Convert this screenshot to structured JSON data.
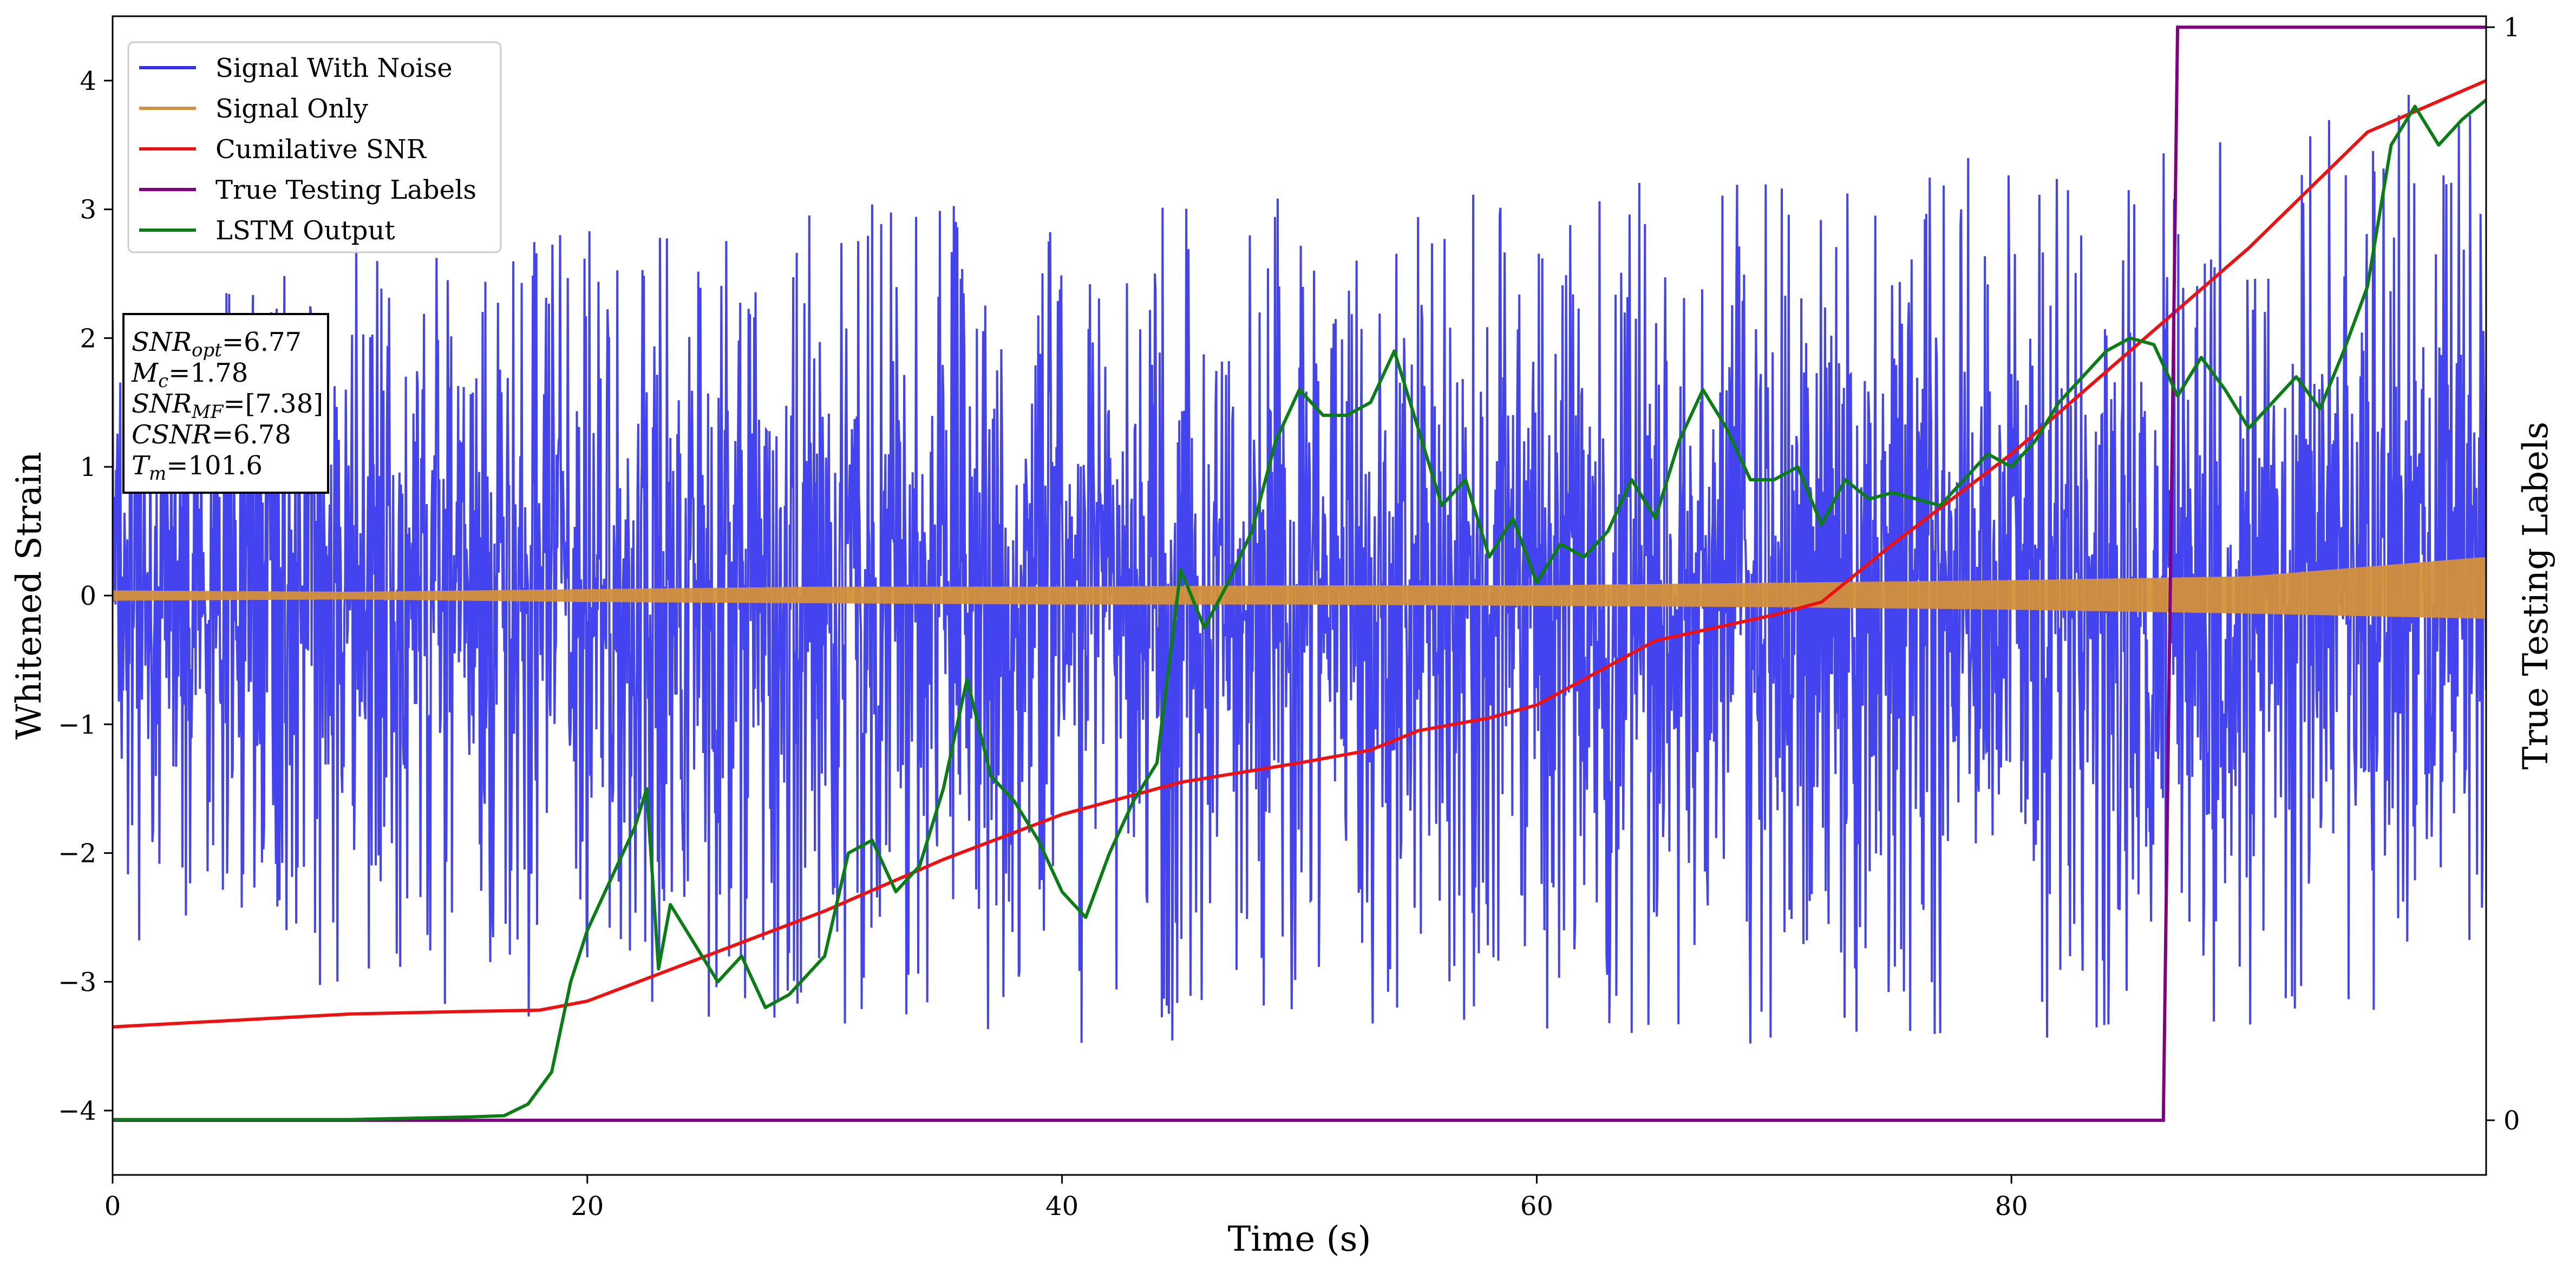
{
  "chart_data": {
    "type": "line",
    "xlabel": "Time (s)",
    "ylabel": "Whitened Strain",
    "y2label": "True Testing Labels",
    "xlim": [
      0,
      100
    ],
    "ylim": [
      -4.5,
      4.5
    ],
    "y2lim": [
      -0.05,
      1.01
    ],
    "xticks": [
      0,
      20,
      40,
      60,
      80
    ],
    "yticks": [
      -4,
      -3,
      -2,
      -1,
      0,
      1,
      2,
      3,
      4
    ],
    "y2ticks": [
      0,
      1
    ],
    "grid": false,
    "legend_position": "top-left",
    "colors": {
      "signal_with_noise": "#3333ee",
      "signal_only": "#d4903a",
      "cumulative_snr": "#ee1111",
      "true_labels": "#800080",
      "lstm_output": "#0a7d14"
    },
    "legend": [
      {
        "key": "signal_with_noise",
        "label": "Signal With Noise"
      },
      {
        "key": "signal_only",
        "label": "Signal Only"
      },
      {
        "key": "cumulative_snr",
        "label": "Cumilative SNR"
      },
      {
        "key": "true_labels",
        "label": "True Testing Labels"
      },
      {
        "key": "lstm_output",
        "label": "LSTM Output"
      }
    ],
    "annotation": [
      {
        "sym": "SNR",
        "sub": "opt",
        "rest": "=6.77"
      },
      {
        "sym": "M",
        "sub": "c",
        "rest": "=1.78"
      },
      {
        "sym": "SNR",
        "sub": "MF",
        "rest": "=[7.38]"
      },
      {
        "sym": "CSNR",
        "sub": "",
        "rest": "=6.78"
      },
      {
        "sym": "T",
        "sub": "m",
        "rest": "=101.6"
      }
    ],
    "series": [
      {
        "key": "signal_with_noise",
        "name": "Signal With Noise",
        "axis": "left",
        "envelope": {
          "x": [
            0,
            10,
            20,
            30,
            40,
            50,
            60,
            70,
            80,
            90,
            100
          ],
          "upper": [
            2.2,
            2.8,
            2.9,
            3.0,
            3.2,
            3.1,
            3.2,
            3.3,
            3.5,
            3.6,
            4.1
          ],
          "lower": [
            -2.7,
            -3.2,
            -3.3,
            -3.3,
            -3.6,
            -3.3,
            -3.4,
            -3.5,
            -3.5,
            -3.4,
            -3.1
          ]
        }
      },
      {
        "key": "signal_only",
        "name": "Signal Only",
        "axis": "left",
        "envelope": {
          "x": [
            0,
            10,
            20,
            30,
            40,
            50,
            60,
            70,
            80,
            90,
            100
          ],
          "upper": [
            0.04,
            0.03,
            0.05,
            0.07,
            0.07,
            0.08,
            0.08,
            0.1,
            0.12,
            0.15,
            0.3
          ],
          "lower": [
            -0.04,
            -0.03,
            -0.05,
            -0.06,
            -0.07,
            -0.07,
            -0.08,
            -0.09,
            -0.11,
            -0.14,
            -0.18
          ]
        }
      },
      {
        "key": "cumulative_snr",
        "name": "Cumilative SNR",
        "axis": "left",
        "x": [
          0,
          5,
          10,
          15,
          18,
          20,
          25,
          30,
          35,
          40,
          45,
          50,
          53,
          55,
          58,
          60,
          65,
          70,
          72,
          75,
          80,
          85,
          90,
          95,
          100
        ],
        "y": [
          -3.35,
          -3.3,
          -3.25,
          -3.23,
          -3.22,
          -3.15,
          -2.8,
          -2.45,
          -2.05,
          -1.7,
          -1.45,
          -1.3,
          -1.2,
          -1.05,
          -0.95,
          -0.85,
          -0.35,
          -0.15,
          -0.05,
          0.4,
          1.1,
          1.9,
          2.7,
          3.6,
          4.0
        ]
      },
      {
        "key": "true_labels",
        "name": "True Testing Labels",
        "axis": "right",
        "x": [
          0,
          86.4,
          87.0,
          100
        ],
        "y": [
          0,
          0,
          1,
          1
        ]
      },
      {
        "key": "lstm_output",
        "name": "LSTM Output",
        "axis": "left",
        "x": [
          0,
          10,
          15,
          16.5,
          17.5,
          18.5,
          19.3,
          20.0,
          21.0,
          22.0,
          22.5,
          23.0,
          23.5,
          24.5,
          25.5,
          26.5,
          27.5,
          28.5,
          30.0,
          31.0,
          32.0,
          33.0,
          34.0,
          35.0,
          36.0,
          37.0,
          38.0,
          39.0,
          40.0,
          41.0,
          42.0,
          43.0,
          44.0,
          45.0,
          46.0,
          47.0,
          48.0,
          49.0,
          50.0,
          51.0,
          52.0,
          53.0,
          54.0,
          55.0,
          56.0,
          57.0,
          58.0,
          59.0,
          60.0,
          61.0,
          62.0,
          63.0,
          64.0,
          65.0,
          66.0,
          67.0,
          68.0,
          69.0,
          70.0,
          71.0,
          72.0,
          73.0,
          74.0,
          75.0,
          76.0,
          77.0,
          78.0,
          79.0,
          80.0,
          81.0,
          82.0,
          83.0,
          84.0,
          85.0,
          86.0,
          87.0,
          88.0,
          89.0,
          90.0,
          91.0,
          92.0,
          93.0,
          94.0,
          95.0,
          96.0,
          97.0,
          98.0,
          99.0,
          100.0
        ],
        "y": [
          -4.07,
          -4.07,
          -4.05,
          -4.04,
          -3.95,
          -3.7,
          -3.0,
          -2.6,
          -2.2,
          -1.8,
          -1.5,
          -2.9,
          -2.4,
          -2.7,
          -3.0,
          -2.8,
          -3.2,
          -3.1,
          -2.8,
          -2.0,
          -1.9,
          -2.3,
          -2.1,
          -1.5,
          -0.65,
          -1.4,
          -1.6,
          -1.9,
          -2.3,
          -2.5,
          -2.0,
          -1.6,
          -1.3,
          0.2,
          -0.25,
          0.1,
          0.5,
          1.2,
          1.6,
          1.4,
          1.4,
          1.5,
          1.9,
          1.3,
          0.7,
          0.9,
          0.3,
          0.6,
          0.1,
          0.4,
          0.3,
          0.5,
          0.9,
          0.6,
          1.2,
          1.6,
          1.3,
          0.9,
          0.9,
          1.0,
          0.55,
          0.9,
          0.75,
          0.8,
          0.75,
          0.7,
          0.9,
          1.1,
          1.0,
          1.2,
          1.5,
          1.7,
          1.9,
          2.0,
          1.95,
          1.55,
          1.85,
          1.6,
          1.3,
          1.5,
          1.7,
          1.45,
          1.9,
          2.4,
          3.5,
          3.8,
          3.5,
          3.7,
          3.85
        ]
      }
    ]
  }
}
